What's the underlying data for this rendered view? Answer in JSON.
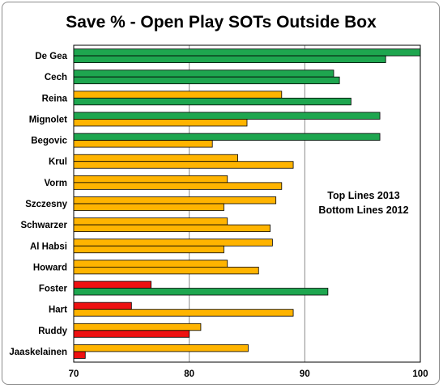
{
  "chart_data": {
    "type": "bar",
    "orientation": "horizontal",
    "title": "Save % - Open Play SOTs Outside Box",
    "categories": [
      "De Gea",
      "Cech",
      "Reina",
      "Mignolet",
      "Begovic",
      "Krul",
      "Vorm",
      "Szczesny",
      "Schwarzer",
      "Al Habsi",
      "Howard",
      "Foster",
      "Hart",
      "Ruddy",
      "Jaaskelainen"
    ],
    "series": [
      {
        "position": "top",
        "values": [
          100,
          92.5,
          88,
          96.5,
          96.5,
          84.2,
          83.3,
          87.5,
          83.3,
          87.2,
          83.3,
          76.7,
          75,
          81,
          85.1
        ],
        "colors": [
          "#1ea64f",
          "#1ea64f",
          "#ffb400",
          "#1ea64f",
          "#1ea64f",
          "#ffb400",
          "#ffb400",
          "#ffb400",
          "#ffb400",
          "#ffb400",
          "#ffb400",
          "#ee1111",
          "#ee1111",
          "#ffb400",
          "#ffb400"
        ]
      },
      {
        "position": "bottom",
        "values": [
          97,
          93,
          94,
          85,
          82,
          89,
          88,
          83,
          87,
          83,
          86,
          92,
          89,
          80,
          71
        ],
        "colors": [
          "#1ea64f",
          "#1ea64f",
          "#1ea64f",
          "#ffb400",
          "#ffb400",
          "#ffb400",
          "#ffb400",
          "#ffb400",
          "#ffb400",
          "#ffb400",
          "#ffb400",
          "#1ea64f",
          "#ffb400",
          "#ee1111",
          "#ee1111"
        ]
      }
    ],
    "xlim": [
      70,
      100
    ],
    "xticks": [
      "70",
      "80",
      "90",
      "100"
    ],
    "grid": "vertical",
    "annotation": [
      "Top Lines 2013",
      "Bottom Lines 2012"
    ],
    "bar_outline_color": "#000000"
  }
}
